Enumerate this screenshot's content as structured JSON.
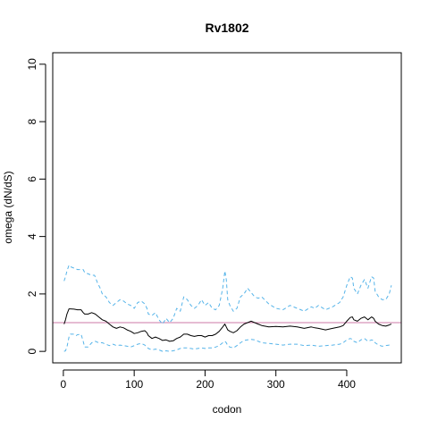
{
  "chart_data": {
    "type": "line",
    "title": "Rv1802",
    "xlabel": "codon",
    "ylabel": "omega (dN/dS)",
    "xlim": [
      -15,
      477
    ],
    "ylim": [
      -0.4,
      10.4
    ],
    "xticks": [
      0,
      100,
      200,
      300,
      400
    ],
    "yticks": [
      0,
      2,
      4,
      6,
      8,
      10
    ],
    "reference_line": {
      "y": 1,
      "color": "#cc79a7"
    },
    "series": [
      {
        "style": "dashed",
        "color": "#56b4e9",
        "x": [
          1,
          3,
          5,
          8,
          10,
          15,
          20,
          28,
          30,
          35,
          40,
          44,
          48,
          52,
          55,
          60,
          65,
          70,
          75,
          80,
          85,
          90,
          95,
          100,
          105,
          110,
          115,
          118,
          120,
          125,
          130,
          135,
          140,
          145,
          150,
          155,
          160,
          165,
          170,
          175,
          180,
          185,
          190,
          195,
          200,
          205,
          210,
          215,
          220,
          225,
          228,
          230,
          232,
          235,
          240,
          245,
          250,
          255,
          260,
          265,
          270,
          275,
          280,
          290,
          300,
          310,
          320,
          330,
          340,
          350,
          355,
          360,
          370,
          380,
          390,
          395,
          400,
          405,
          408,
          410,
          415,
          420,
          425,
          430,
          435,
          438,
          440,
          445,
          450,
          455,
          460,
          463
        ],
        "y": [
          2.45,
          2.6,
          2.8,
          3.0,
          2.95,
          2.9,
          2.85,
          2.85,
          2.75,
          2.7,
          2.65,
          2.65,
          2.4,
          2.2,
          2.0,
          1.9,
          1.7,
          1.6,
          1.7,
          1.8,
          1.75,
          1.65,
          1.6,
          1.5,
          1.7,
          1.75,
          1.65,
          1.5,
          1.3,
          1.25,
          1.35,
          1.1,
          0.95,
          1.15,
          1.0,
          1.15,
          1.5,
          1.4,
          1.9,
          1.8,
          1.6,
          1.5,
          1.6,
          1.8,
          1.6,
          1.7,
          1.5,
          1.45,
          1.6,
          2.2,
          2.8,
          2.5,
          1.8,
          1.6,
          1.4,
          1.5,
          1.9,
          2.0,
          2.2,
          2.05,
          1.9,
          1.85,
          1.9,
          1.65,
          1.5,
          1.45,
          1.6,
          1.5,
          1.4,
          1.55,
          1.5,
          1.6,
          1.45,
          1.55,
          1.7,
          1.9,
          2.3,
          2.6,
          2.55,
          2.2,
          2.0,
          2.3,
          2.5,
          2.2,
          2.6,
          2.55,
          2.1,
          1.9,
          1.8,
          1.8,
          2.0,
          2.3
        ]
      },
      {
        "style": "solid",
        "color": "#000000",
        "x": [
          1,
          3,
          5,
          8,
          10,
          15,
          20,
          25,
          28,
          30,
          35,
          40,
          45,
          50,
          55,
          60,
          65,
          70,
          75,
          80,
          85,
          90,
          95,
          100,
          105,
          110,
          115,
          118,
          120,
          125,
          130,
          135,
          140,
          145,
          150,
          155,
          160,
          165,
          170,
          175,
          180,
          185,
          190,
          195,
          200,
          205,
          210,
          215,
          220,
          225,
          228,
          230,
          232,
          235,
          240,
          245,
          250,
          255,
          260,
          265,
          270,
          275,
          280,
          290,
          300,
          310,
          320,
          330,
          340,
          350,
          355,
          360,
          370,
          380,
          390,
          395,
          400,
          405,
          408,
          410,
          415,
          420,
          425,
          430,
          435,
          438,
          440,
          445,
          450,
          455,
          460,
          463
        ],
        "y": [
          0.95,
          1.1,
          1.3,
          1.48,
          1.48,
          1.47,
          1.45,
          1.45,
          1.35,
          1.3,
          1.3,
          1.35,
          1.3,
          1.2,
          1.1,
          1.05,
          0.95,
          0.85,
          0.8,
          0.85,
          0.82,
          0.75,
          0.7,
          0.62,
          0.65,
          0.7,
          0.72,
          0.65,
          0.55,
          0.45,
          0.5,
          0.45,
          0.38,
          0.4,
          0.35,
          0.37,
          0.45,
          0.5,
          0.6,
          0.6,
          0.55,
          0.52,
          0.55,
          0.55,
          0.5,
          0.55,
          0.55,
          0.6,
          0.7,
          0.85,
          0.95,
          0.85,
          0.75,
          0.7,
          0.65,
          0.72,
          0.85,
          0.95,
          1.0,
          1.05,
          1.0,
          0.95,
          0.9,
          0.85,
          0.87,
          0.85,
          0.88,
          0.85,
          0.8,
          0.85,
          0.82,
          0.8,
          0.75,
          0.8,
          0.85,
          0.9,
          1.05,
          1.18,
          1.2,
          1.1,
          1.05,
          1.15,
          1.2,
          1.1,
          1.2,
          1.15,
          1.05,
          0.95,
          0.9,
          0.88,
          0.92,
          0.95
        ]
      },
      {
        "style": "dashed",
        "color": "#56b4e9",
        "x": [
          1,
          3,
          5,
          8,
          10,
          15,
          18,
          20,
          25,
          28,
          30,
          35,
          40,
          45,
          50,
          55,
          60,
          65,
          70,
          75,
          80,
          85,
          90,
          95,
          100,
          105,
          110,
          115,
          118,
          120,
          125,
          130,
          135,
          140,
          145,
          150,
          155,
          160,
          165,
          170,
          175,
          180,
          185,
          190,
          195,
          200,
          205,
          210,
          215,
          220,
          225,
          228,
          230,
          232,
          235,
          240,
          245,
          250,
          255,
          260,
          265,
          270,
          275,
          280,
          290,
          300,
          310,
          320,
          330,
          340,
          350,
          355,
          360,
          370,
          380,
          390,
          395,
          400,
          405,
          408,
          410,
          415,
          420,
          425,
          430,
          435,
          438,
          440,
          445,
          450,
          455,
          460,
          463
        ],
        "y": [
          0.0,
          0.02,
          0.15,
          0.5,
          0.6,
          0.6,
          0.55,
          0.58,
          0.6,
          0.35,
          0.15,
          0.15,
          0.3,
          0.35,
          0.3,
          0.3,
          0.25,
          0.2,
          0.25,
          0.2,
          0.22,
          0.2,
          0.18,
          0.15,
          0.2,
          0.25,
          0.28,
          0.22,
          0.15,
          0.1,
          0.05,
          0.08,
          0.05,
          0.0,
          0.02,
          0.0,
          0.02,
          0.05,
          0.1,
          0.12,
          0.12,
          0.1,
          0.08,
          0.1,
          0.12,
          0.1,
          0.12,
          0.12,
          0.15,
          0.2,
          0.3,
          0.35,
          0.3,
          0.2,
          0.15,
          0.12,
          0.2,
          0.3,
          0.38,
          0.4,
          0.42,
          0.4,
          0.35,
          0.3,
          0.28,
          0.25,
          0.22,
          0.25,
          0.25,
          0.2,
          0.22,
          0.2,
          0.18,
          0.2,
          0.22,
          0.25,
          0.3,
          0.4,
          0.45,
          0.42,
          0.35,
          0.3,
          0.4,
          0.45,
          0.35,
          0.4,
          0.38,
          0.3,
          0.22,
          0.18,
          0.2,
          0.22,
          0.2
        ]
      }
    ]
  }
}
